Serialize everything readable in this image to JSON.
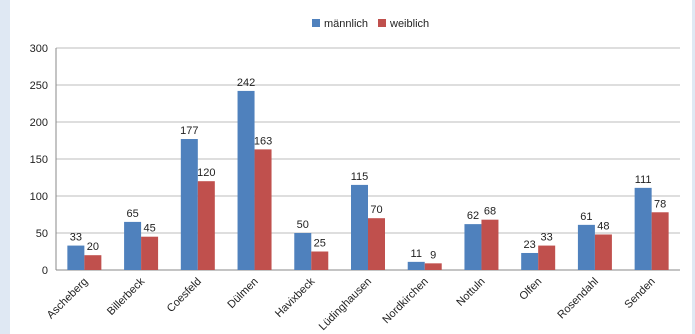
{
  "chart_data": {
    "type": "bar",
    "categories": [
      "Ascheberg",
      "Billerbeck",
      "Coesfeld",
      "Dülmen",
      "Havixbeck",
      "Lüdinghausen",
      "Nordkirchen",
      "Nottuln",
      "Olfen",
      "Rosendahl",
      "Senden"
    ],
    "series": [
      {
        "name": "männlich",
        "color": "#4f81bd",
        "values": [
          33,
          65,
          177,
          242,
          50,
          115,
          11,
          62,
          23,
          61,
          111
        ]
      },
      {
        "name": "weiblich",
        "color": "#c0504d",
        "values": [
          20,
          45,
          120,
          163,
          25,
          70,
          9,
          68,
          33,
          48,
          78
        ]
      }
    ],
    "ylim": [
      0,
      300
    ],
    "yticks": [
      0,
      50,
      100,
      150,
      200,
      250,
      300
    ],
    "grid": true,
    "legend_position": "top-center",
    "title": "",
    "xlabel": "",
    "ylabel": ""
  }
}
